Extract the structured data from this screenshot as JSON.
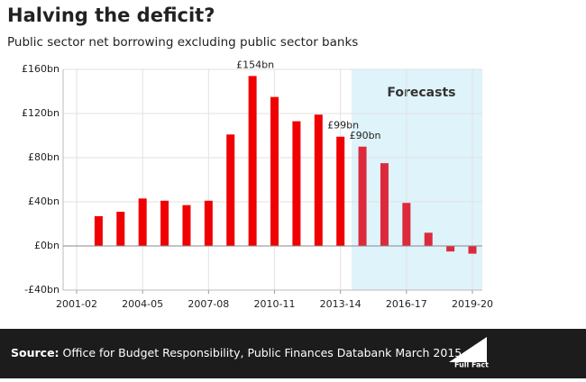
{
  "chart_data": {
    "type": "bar",
    "title": "Halving the deficit?",
    "subtitle": "Public sector net borrowing excluding public sector banks",
    "categories": [
      "2001-02",
      null,
      null,
      "2004-05",
      null,
      null,
      "2007-08",
      null,
      null,
      "2010-11",
      null,
      null,
      "2013-14",
      null,
      null,
      "2016-17",
      null,
      null,
      "2019-20"
    ],
    "values": [
      null,
      27,
      31,
      43,
      41,
      37,
      41,
      101,
      154,
      135,
      113,
      119,
      99,
      90,
      75,
      39,
      12,
      -5,
      -7
    ],
    "value_labels": [
      null,
      null,
      null,
      null,
      null,
      null,
      null,
      null,
      "£154bn",
      null,
      null,
      null,
      "£99bn",
      "£90bn",
      null,
      null,
      null,
      null,
      null
    ],
    "color": "#f00000",
    "forecast": {
      "label": "Forecasts",
      "start": 13,
      "color": "#dc2a3c",
      "shade": "#dff3fb"
    },
    "ylim": [
      -40,
      160
    ],
    "yticks": [
      {
        "value": -40,
        "label": "-£40bn"
      },
      {
        "value": 0,
        "label": "£0bn"
      },
      {
        "value": 40,
        "label": "£40bn"
      },
      {
        "value": 80,
        "label": "£80bn"
      },
      {
        "value": 120,
        "label": "£120bn"
      },
      {
        "value": 160,
        "label": "£160bn"
      }
    ],
    "grid": true
  },
  "footer": {
    "source_label": "Source:",
    "source": "Office for Budget Responsibility, Public Finances Databank March 2015",
    "logo": "Full Fact"
  }
}
